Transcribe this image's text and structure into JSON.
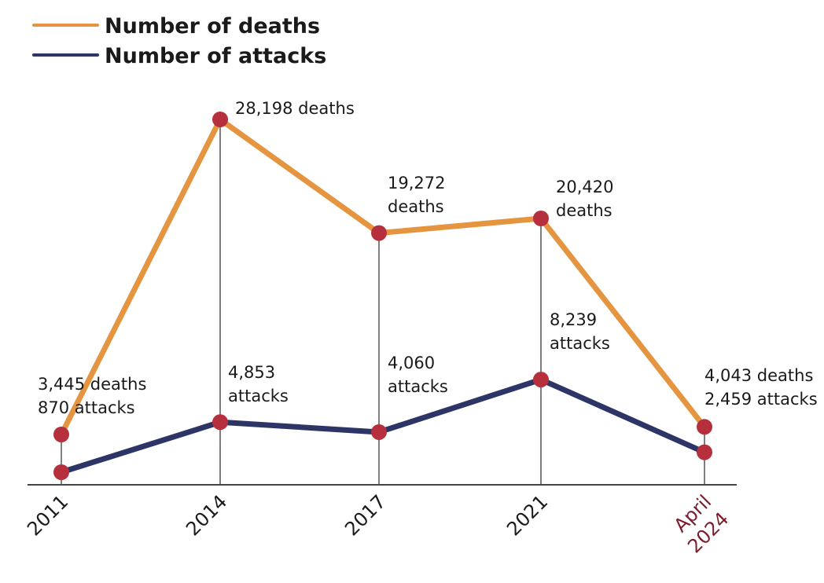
{
  "chart_data": {
    "type": "line",
    "title": "",
    "xlabel": "",
    "ylabel": "",
    "grid": false,
    "legend_position": "top-left",
    "categories": [
      "2011",
      "2014",
      "2017",
      "2021",
      "April 2024"
    ],
    "category_lines": [
      [
        "2011"
      ],
      [
        "2014"
      ],
      [
        "2017"
      ],
      [
        "2021"
      ],
      [
        "April",
        "2024"
      ]
    ],
    "series": [
      {
        "name": "Number of deaths",
        "color": "#e59440",
        "values": [
          3445,
          28198,
          19272,
          20420,
          4043
        ]
      },
      {
        "name": "Number of attacks",
        "color": "#2c3566",
        "values": [
          870,
          4853,
          4060,
          8239,
          2459
        ]
      }
    ],
    "marker_color": "#b5303c",
    "highlight_tick_color": "#7a1e2e",
    "annotations": [
      {
        "lines": [
          "3,445 deaths",
          "870 attacks"
        ]
      },
      {
        "lines": [
          "28,198 deaths"
        ]
      },
      {
        "lines": [
          "19,272",
          "deaths"
        ]
      },
      {
        "lines": [
          "20,420",
          "deaths"
        ]
      },
      {
        "lines": [
          "4,853",
          "attacks"
        ]
      },
      {
        "lines": [
          "4,060",
          "attacks"
        ]
      },
      {
        "lines": [
          "8,239",
          "attacks"
        ]
      },
      {
        "lines": [
          "4,043 deaths",
          "2,459 attacks"
        ]
      }
    ]
  }
}
